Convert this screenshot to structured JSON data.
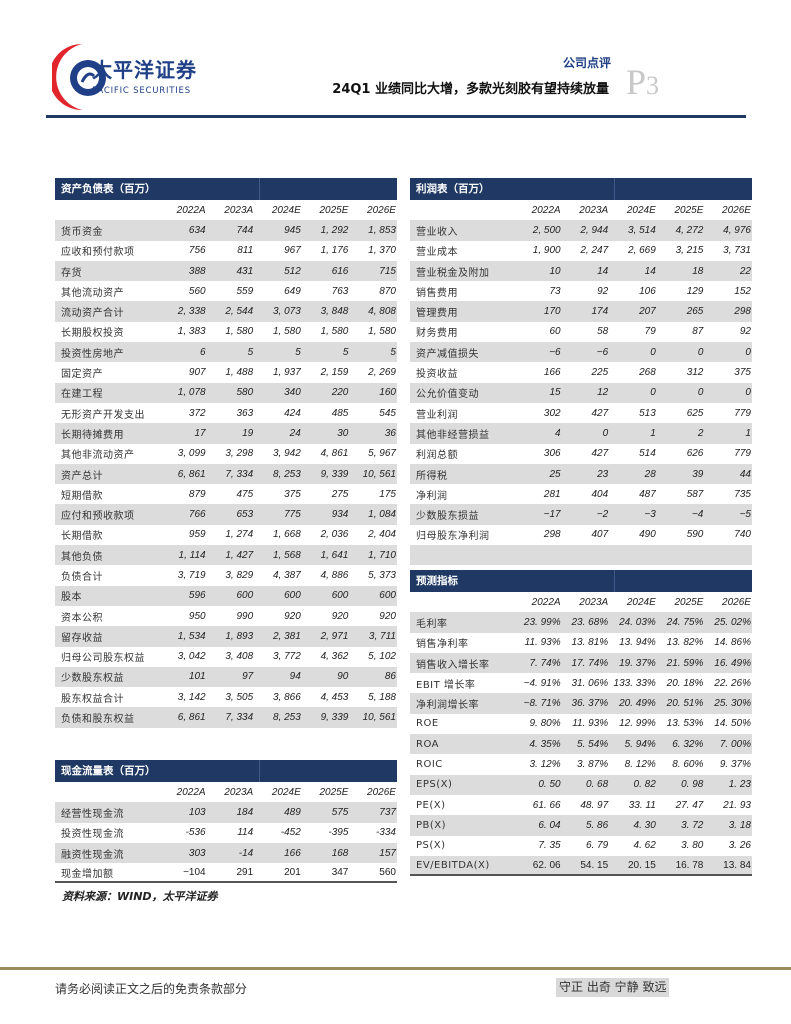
{
  "header": {
    "brand_cn": "太平洋证券",
    "brand_en": "PACIFIC SECURITIES",
    "doc_type": "公司点评",
    "title": "24Q1 业绩同比大增，多款光刻胶有望持续放量",
    "page_prefix": "P",
    "page_number": "3",
    "colors": {
      "brand": "#1f3864",
      "logo_red": "#e0252b"
    }
  },
  "balance_sheet": {
    "title": "资产负债表（百万）",
    "years": [
      "2022A",
      "2023A",
      "2024E",
      "2025E",
      "2026E"
    ],
    "rows": [
      [
        "货币资金",
        "634",
        "744",
        "945",
        "1, 292",
        "1, 853"
      ],
      [
        "应收和预付款项",
        "756",
        "811",
        "967",
        "1, 176",
        "1, 370"
      ],
      [
        "存货",
        "388",
        "431",
        "512",
        "616",
        "715"
      ],
      [
        "其他流动资产",
        "560",
        "559",
        "649",
        "763",
        "870"
      ],
      [
        "流动资产合计",
        "2, 338",
        "2, 544",
        "3, 073",
        "3, 848",
        "4, 808"
      ],
      [
        "长期股权投资",
        "1, 383",
        "1, 580",
        "1, 580",
        "1, 580",
        "1, 580"
      ],
      [
        "投资性房地产",
        "6",
        "5",
        "5",
        "5",
        "5"
      ],
      [
        "固定资产",
        "907",
        "1, 488",
        "1, 937",
        "2, 159",
        "2, 269"
      ],
      [
        "在建工程",
        "1, 078",
        "580",
        "340",
        "220",
        "160"
      ],
      [
        "无形资产开发支出",
        "372",
        "363",
        "424",
        "485",
        "545"
      ],
      [
        "长期待摊费用",
        "17",
        "19",
        "24",
        "30",
        "36"
      ],
      [
        "其他非流动资产",
        "3, 099",
        "3, 298",
        "3, 942",
        "4, 861",
        "5, 967"
      ],
      [
        "资产总计",
        "6, 861",
        "7, 334",
        "8, 253",
        "9, 339",
        "10, 561"
      ],
      [
        "短期借款",
        "879",
        "475",
        "375",
        "275",
        "175"
      ],
      [
        "应付和预收款项",
        "766",
        "653",
        "775",
        "934",
        "1, 084"
      ],
      [
        "长期借款",
        "959",
        "1, 274",
        "1, 668",
        "2, 036",
        "2, 404"
      ],
      [
        "其他负债",
        "1, 114",
        "1, 427",
        "1, 568",
        "1, 641",
        "1, 710"
      ],
      [
        "负债合计",
        "3, 719",
        "3, 829",
        "4, 387",
        "4, 886",
        "5, 373"
      ],
      [
        "股本",
        "596",
        "600",
        "600",
        "600",
        "600"
      ],
      [
        "资本公积",
        "950",
        "990",
        "920",
        "920",
        "920"
      ],
      [
        "留存收益",
        "1, 534",
        "1, 893",
        "2, 381",
        "2, 971",
        "3, 711"
      ],
      [
        "归母公司股东权益",
        "3, 042",
        "3, 408",
        "3, 772",
        "4, 362",
        "5, 102"
      ],
      [
        "少数股东权益",
        "101",
        "97",
        "94",
        "90",
        "86"
      ],
      [
        "股东权益合计",
        "3, 142",
        "3, 505",
        "3, 866",
        "4, 453",
        "5, 188"
      ],
      [
        "负债和股东权益",
        "6, 861",
        "7, 334",
        "8, 253",
        "9, 339",
        "10, 561"
      ]
    ]
  },
  "cash_flow": {
    "title": "现金流量表（百万）",
    "years": [
      "2022A",
      "2023A",
      "2024E",
      "2025E",
      "2026E"
    ],
    "rows": [
      [
        "经营性现金流",
        "103",
        "184",
        "489",
        "575",
        "737"
      ],
      [
        "投资性现金流",
        "-536",
        "114",
        "-452",
        "-395",
        "-334"
      ],
      [
        "融资性现金流",
        "303",
        "-14",
        "166",
        "168",
        "157"
      ],
      [
        "现金增加额",
        "−104",
        "291",
        "201",
        "347",
        "560"
      ]
    ]
  },
  "income": {
    "title": "利润表（百万）",
    "years": [
      "2022A",
      "2023A",
      "2024E",
      "2025E",
      "2026E"
    ],
    "rows": [
      [
        "营业收入",
        "2, 500",
        "2, 944",
        "3, 514",
        "4, 272",
        "4, 976"
      ],
      [
        "营业成本",
        "1, 900",
        "2, 247",
        "2, 669",
        "3, 215",
        "3, 731"
      ],
      [
        "营业税金及附加",
        "10",
        "14",
        "14",
        "18",
        "22"
      ],
      [
        "销售费用",
        "73",
        "92",
        "106",
        "129",
        "152"
      ],
      [
        "管理费用",
        "170",
        "174",
        "207",
        "265",
        "298"
      ],
      [
        "财务费用",
        "60",
        "58",
        "79",
        "87",
        "92"
      ],
      [
        "资产减值损失",
        "−6",
        "−6",
        "0",
        "0",
        "0"
      ],
      [
        "投资收益",
        "166",
        "225",
        "268",
        "312",
        "375"
      ],
      [
        "公允价值变动",
        "15",
        "12",
        "0",
        "0",
        "0"
      ],
      [
        "营业利润",
        "302",
        "427",
        "513",
        "625",
        "779"
      ],
      [
        "其他非经营损益",
        "4",
        "0",
        "1",
        "2",
        "1"
      ],
      [
        "利润总额",
        "306",
        "427",
        "514",
        "626",
        "779"
      ],
      [
        "所得税",
        "25",
        "23",
        "28",
        "39",
        "44"
      ],
      [
        "净利润",
        "281",
        "404",
        "487",
        "587",
        "735"
      ],
      [
        "少数股东损益",
        "−17",
        "−2",
        "−3",
        "−4",
        "−5"
      ],
      [
        "归母股东净利润",
        "298",
        "407",
        "490",
        "590",
        "740"
      ]
    ]
  },
  "forecast": {
    "title": "预测指标",
    "years": [
      "2022A",
      "2023A",
      "2024E",
      "2025E",
      "2026E"
    ],
    "rows": [
      [
        "毛利率",
        "23. 99%",
        "23. 68%",
        "24. 03%",
        "24. 75%",
        "25. 02%"
      ],
      [
        "销售净利率",
        "11. 93%",
        "13. 81%",
        "13. 94%",
        "13. 82%",
        "14. 86%"
      ],
      [
        "销售收入增长率",
        "7. 74%",
        "17. 74%",
        "19. 37%",
        "21. 59%",
        "16. 49%"
      ],
      [
        "EBIT 增长率",
        "−4. 91%",
        "31. 06%",
        "133. 33%",
        "20. 18%",
        "22. 26%"
      ],
      [
        "净利润增长率",
        "−8. 71%",
        "36. 37%",
        "20. 49%",
        "20. 51%",
        "25. 30%"
      ],
      [
        "ROE",
        "9. 80%",
        "11. 93%",
        "12. 99%",
        "13. 53%",
        "14. 50%"
      ],
      [
        "ROA",
        "4. 35%",
        "5. 54%",
        "5. 94%",
        "6. 32%",
        "7. 00%"
      ],
      [
        "ROIC",
        "3. 12%",
        "3. 87%",
        "8. 12%",
        "8. 60%",
        "9. 37%"
      ],
      [
        "EPS(X)",
        "0. 50",
        "0. 68",
        "0. 82",
        "0. 98",
        "1. 23"
      ],
      [
        "PE(X)",
        "61. 66",
        "48. 97",
        "33. 11",
        "27. 47",
        "21. 93"
      ],
      [
        "PB(X)",
        "6. 04",
        "5. 86",
        "4. 30",
        "3. 72",
        "3. 18"
      ],
      [
        "PS(X)",
        "7. 35",
        "6. 79",
        "4. 62",
        "3. 80",
        "3. 26"
      ],
      [
        "EV/EBITDA(X)",
        "62. 06",
        "54. 15",
        "20. 15",
        "16. 78",
        "13. 84"
      ]
    ]
  },
  "source": "资料来源：WIND，太平洋证券",
  "footer": {
    "disclaimer": "请务必阅读正文之后的免责条款部分",
    "motto": "守正 出奇 宁静 致远"
  }
}
